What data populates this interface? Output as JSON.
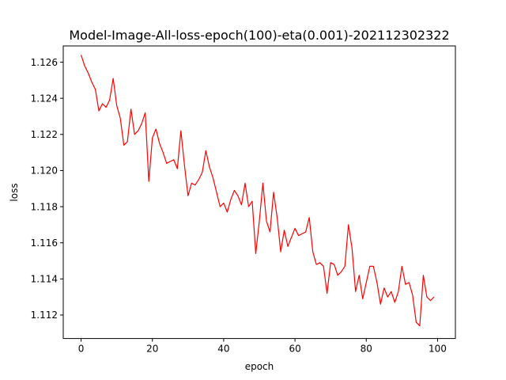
{
  "chart_data": {
    "type": "line",
    "title": "Model-Image-All-loss-epoch(100)-eta(0.001)-202112302322",
    "xlabel": "epoch",
    "ylabel": "loss",
    "xlim": [
      -5,
      105
    ],
    "ylim": [
      1.1107,
      1.1269
    ],
    "xticks": [
      0,
      20,
      40,
      60,
      80,
      100
    ],
    "xtick_labels": [
      "0",
      "20",
      "40",
      "60",
      "80",
      "100"
    ],
    "yticks": [
      1.112,
      1.114,
      1.116,
      1.118,
      1.12,
      1.122,
      1.124,
      1.126
    ],
    "ytick_labels": [
      "1.112",
      "1.114",
      "1.116",
      "1.118",
      "1.120",
      "1.122",
      "1.124",
      "1.126"
    ],
    "grid": false,
    "series": [
      {
        "color": "#ff0000",
        "x": [
          0,
          1,
          2,
          3,
          4,
          5,
          6,
          7,
          8,
          9,
          10,
          11,
          12,
          13,
          14,
          15,
          16,
          17,
          18,
          19,
          20,
          21,
          22,
          23,
          24,
          25,
          26,
          27,
          28,
          29,
          30,
          31,
          32,
          33,
          34,
          35,
          36,
          37,
          38,
          39,
          40,
          41,
          42,
          43,
          44,
          45,
          46,
          47,
          48,
          49,
          50,
          51,
          52,
          53,
          54,
          55,
          56,
          57,
          58,
          59,
          60,
          61,
          62,
          63,
          64,
          65,
          66,
          67,
          68,
          69,
          70,
          71,
          72,
          73,
          74,
          75,
          76,
          77,
          78,
          79,
          80,
          81,
          82,
          83,
          84,
          85,
          86,
          87,
          88,
          89,
          90,
          91,
          92,
          93,
          94,
          95,
          96,
          97,
          98,
          99
        ],
        "values": [
          1.1264,
          1.1258,
          1.1254,
          1.1249,
          1.1245,
          1.1233,
          1.1237,
          1.1235,
          1.1239,
          1.1251,
          1.1236,
          1.1229,
          1.1214,
          1.1216,
          1.1234,
          1.122,
          1.1222,
          1.1226,
          1.1232,
          1.1194,
          1.1218,
          1.1223,
          1.1215,
          1.121,
          1.1204,
          1.1205,
          1.1206,
          1.1201,
          1.1222,
          1.1203,
          1.1186,
          1.1193,
          1.1192,
          1.1195,
          1.1199,
          1.1211,
          1.1202,
          1.1196,
          1.1188,
          1.118,
          1.1182,
          1.1177,
          1.1184,
          1.1189,
          1.1186,
          1.1181,
          1.1193,
          1.118,
          1.1183,
          1.1154,
          1.1172,
          1.1193,
          1.1172,
          1.1166,
          1.1188,
          1.1174,
          1.1155,
          1.1167,
          1.1158,
          1.1163,
          1.1168,
          1.1164,
          1.1165,
          1.1166,
          1.1174,
          1.1155,
          1.1148,
          1.1149,
          1.1147,
          1.1132,
          1.1149,
          1.1148,
          1.1142,
          1.1144,
          1.1147,
          1.117,
          1.1157,
          1.1133,
          1.1142,
          1.1129,
          1.1138,
          1.1147,
          1.1147,
          1.1138,
          1.1126,
          1.1135,
          1.113,
          1.1133,
          1.1127,
          1.1133,
          1.1147,
          1.1137,
          1.1138,
          1.1131,
          1.1116,
          1.1114,
          1.1142,
          1.113,
          1.1128,
          1.113
        ]
      }
    ]
  }
}
